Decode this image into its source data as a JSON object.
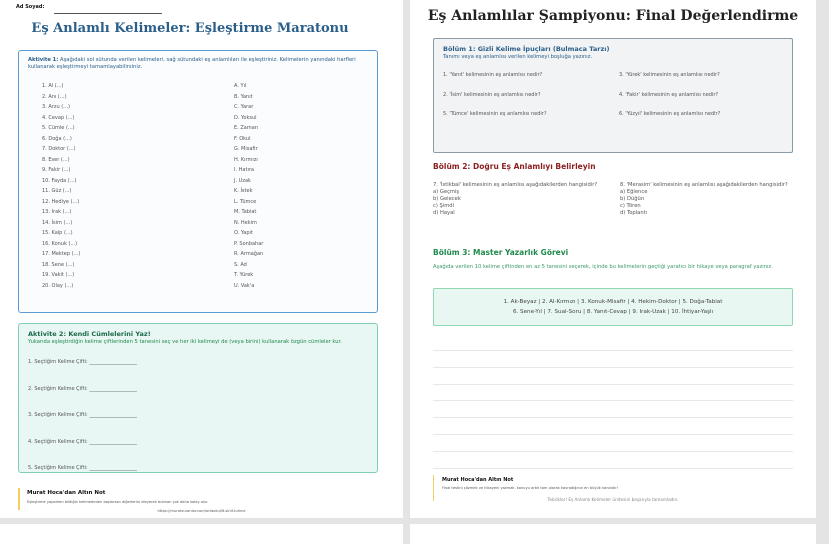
{
  "page1": {
    "name_label": "Ad Soyad:",
    "title": "Eş Anlamlı Kelimeler: Eşleştirme Maratonu",
    "activity1": {
      "label": "Aktivite 1:",
      "text": "Aşağıdaki sol sütunda verilen kelimeleri, sağ sütundaki eş anlamlıları ile eşleştiriniz. Kelimelerin yanındaki harfleri kullanarak eşleştirmeyi tamamlayabilirsiniz.",
      "left": [
        "1. Al (...)",
        "2. Anı (...)",
        "3. Arzu (...)",
        "4. Cevap (...)",
        "5. Cümle (...)",
        "6. Doğa (...)",
        "7. Doktor (...)",
        "8. Eser (...)",
        "9. Fakir (...)",
        "10. Fayda (...)",
        "11. Güz (...)",
        "12. Hediye (...)",
        "13. Irak (...)",
        "14. İsim (...)",
        "15. Kalp (...)",
        "16. Konuk (...)",
        "17. Mektep (...)",
        "18. Sene (...)",
        "19. Vakit (...)",
        "20. Olay (...)"
      ],
      "right": [
        "A. Yıl",
        "B. Yanıt",
        "C. Yarar",
        "D. Yoksul",
        "E. Zaman",
        "F. Okul",
        "G. Misafir",
        "H. Kırmızı",
        "I. Hatıra",
        "J. Uzak",
        "K. İstek",
        "L. Tümce",
        "M. Tabiat",
        "N. Hekim",
        "O. Yapıt",
        "P. Sonbahar",
        "R. Armağan",
        "S. Ad",
        "T. Yürek",
        "U. Vak'a"
      ]
    },
    "activity2": {
      "title": "Aktivite 2: Kendi Cümlelerini Yaz!",
      "text": "Yukarıda eşleştirdiğin kelime çiftlerinden 5 tanesini seç ve her iki kelimeyi de (veya birini) kullanarak özgün cümleler kur.",
      "prompts": [
        "1. Seçtiğim Kelime Çifti: ___________________",
        "2. Seçtiğim Kelime Çifti: ___________________",
        "3. Seçtiğim Kelime Çifti: ___________________",
        "4. Seçtiğim Kelime Çifti: ___________________",
        "5. Seçtiğim Kelime Çifti: ___________________"
      ]
    },
    "note": {
      "title": "Murat Hoca'dan Altın Not",
      "text": "Eşleştirme yaparken bildiğin kelimelerden başlarsan diğerlerini eleyerek bulman çok daha kolay olur.",
      "url": "https://muratvuranlar.com/ortaokul/6-sinif-turkce"
    }
  },
  "page2": {
    "title": "Eş Anlamlılar Şampiyonu: Final Değerlendirme",
    "section1": {
      "title": "Bölüm 1: Gizli Kelime İpuçları (Bulmaca Tarzı)",
      "subtitle": "Tanımı veya eş anlamlısı verilen kelimeyi boşluğa yazınız.",
      "questions": [
        "1. 'Yanıt' kelimesinin eş anlamlısı nedir?",
        "3. 'Yürek' kelimesinin eş anlamlısı nedir?",
        "2. 'İsim' kelimesinin eş anlamlısı nedir?",
        "4. 'Fakir' kelimesinin eş anlamlısı nedir?",
        "5. 'Tümce' kelimesinin eş anlamlısı nedir?",
        "6. 'Yüzyıl' kelimesinin eş anlamlısı nedir?"
      ]
    },
    "section2": {
      "title": "Bölüm 2: Doğru Eş Anlamlıyı Belirleyin",
      "q7": {
        "text": "7. 'İstikbal' kelimesinin eş anlamlısı aşağıdakilerden hangisidir?",
        "options": [
          "a) Geçmiş",
          "b) Gelecek",
          "c) Şimdi",
          "d) Hayal"
        ]
      },
      "q8": {
        "text": "8. 'Merasim' kelimesinin eş anlamlısı aşağıdakilerden hangisidir?",
        "options": [
          "a) Eğlence",
          "b) Düğün",
          "c) Tören",
          "d) Toplantı"
        ]
      }
    },
    "section3": {
      "title": "Bölüm 3: Master Yazarlık Görevi",
      "text": "Aşağıda verilen 10 kelime çiftinden en az 5 tanesini seçerek, içinde bu kelimelerin geçtiği yaratıcı bir hikaye veya paragraf yazınız.",
      "pairs_line1": "1. Ak-Beyaz | 2. Al-Kırmızı | 3. Konuk-Misafir | 4. Hekim-Doktor | 5. Doğa-Tabiat",
      "pairs_line2": "6. Sene-Yıl | 7. Sual-Soru | 8. Yanıt-Cevap | 9. Irak-Uzak | 10. İhtiyar-Yaşlı"
    },
    "note": {
      "title": "Murat Hoca'dan Altın Not",
      "text": "Final testini çözmek ve hikayeni yazmak, konuyu artık tam olarak kavradığının en büyük kanıtıdır!",
      "closing": "Tebrikler! Eş Anlamlı Kelimeler ünitesini başarıyla tamamladın."
    }
  },
  "colors": {
    "blue": "#2b5f8a",
    "green": "#1f8a4c",
    "red": "#8b1f1f",
    "teal_bg": "#e8f7f3",
    "teal_border": "#7fcfb8",
    "gold": "#f2cf60"
  }
}
